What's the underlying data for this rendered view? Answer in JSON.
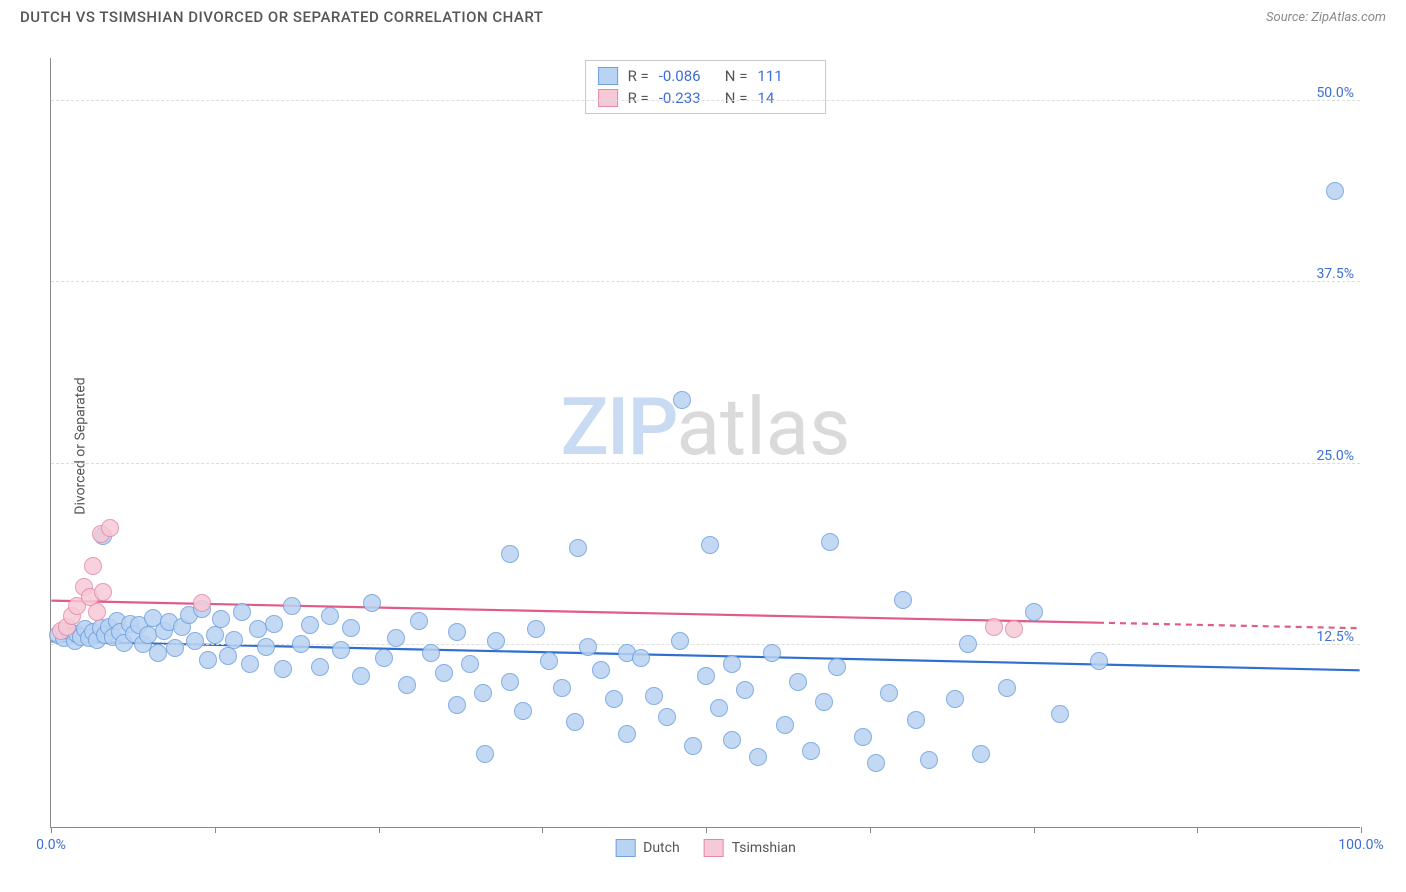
{
  "title": "DUTCH VS TSIMSHIAN DIVORCED OR SEPARATED CORRELATION CHART",
  "source": "Source: ZipAtlas.com",
  "ylabel": "Divorced or Separated",
  "watermark": {
    "bold": "ZIP",
    "light": "atlas"
  },
  "colors": {
    "series1_fill": "#b9d3f2",
    "series1_stroke": "#6fa0df",
    "series2_fill": "#f6c9d6",
    "series2_stroke": "#e48aa8",
    "trend1": "#2e6fd1",
    "trend2": "#e15b8a",
    "axis_text": "#3b6fd6",
    "grid": "#dddddd"
  },
  "chart": {
    "type": "scatter",
    "xlim": [
      0,
      100
    ],
    "ylim": [
      0,
      53
    ],
    "marker_radius": 9,
    "marker_opacity": 0.85,
    "line_width": 2.2,
    "x_ticks": [
      0,
      12.5,
      25,
      37.5,
      50,
      62.5,
      75,
      87.5,
      100
    ],
    "x_tick_labels": {
      "0": "0.0%",
      "100": "100.0%"
    },
    "y_ticks": [
      12.5,
      25.0,
      37.5,
      50.0
    ],
    "y_tick_labels": [
      "12.5%",
      "25.0%",
      "37.5%",
      "50.0%"
    ]
  },
  "legend_stats": [
    {
      "series": 1,
      "R_label": "R =",
      "R": "-0.086",
      "N_label": "N =",
      "N": "111"
    },
    {
      "series": 2,
      "R_label": "R =",
      "R": "-0.233",
      "N_label": "N =",
      "N": "14"
    }
  ],
  "bottom_legend": [
    {
      "label": "Dutch",
      "series": 1
    },
    {
      "label": "Tsimshian",
      "series": 2
    }
  ],
  "trend_lines": [
    {
      "series": 1,
      "x1": 0,
      "y1": 12.8,
      "x2": 100,
      "y2": 10.8,
      "dash_from_x": 100
    },
    {
      "series": 2,
      "x1": 0,
      "y1": 15.6,
      "x2": 100,
      "y2": 13.7,
      "dash_from_x": 80
    }
  ],
  "series1_points": [
    [
      0.5,
      13.2
    ],
    [
      1.0,
      13.0
    ],
    [
      1.4,
      13.5
    ],
    [
      1.8,
      12.8
    ],
    [
      2.0,
      13.3
    ],
    [
      2.3,
      13.1
    ],
    [
      2.6,
      13.6
    ],
    [
      2.9,
      13.0
    ],
    [
      3.2,
      13.4
    ],
    [
      3.5,
      12.9
    ],
    [
      3.8,
      13.7
    ],
    [
      4.1,
      13.2
    ],
    [
      4.4,
      13.8
    ],
    [
      4.7,
      13.1
    ],
    [
      5.0,
      14.2
    ],
    [
      5.3,
      13.4
    ],
    [
      5.6,
      12.7
    ],
    [
      6.0,
      14.0
    ],
    [
      6.3,
      13.3
    ],
    [
      6.7,
      13.9
    ],
    [
      7.0,
      12.6
    ],
    [
      7.4,
      13.2
    ],
    [
      7.8,
      14.4
    ],
    [
      8.2,
      12.0
    ],
    [
      8.6,
      13.5
    ],
    [
      9.0,
      14.1
    ],
    [
      9.5,
      12.3
    ],
    [
      10.0,
      13.8
    ],
    [
      10.5,
      14.6
    ],
    [
      11.0,
      12.8
    ],
    [
      11.5,
      15.0
    ],
    [
      12.0,
      11.5
    ],
    [
      12.5,
      13.2
    ],
    [
      13.0,
      14.3
    ],
    [
      13.5,
      11.8
    ],
    [
      14.0,
      12.9
    ],
    [
      14.6,
      14.8
    ],
    [
      15.2,
      11.2
    ],
    [
      15.8,
      13.6
    ],
    [
      16.4,
      12.4
    ],
    [
      17.0,
      14.0
    ],
    [
      17.7,
      10.9
    ],
    [
      18.4,
      15.2
    ],
    [
      19.1,
      12.6
    ],
    [
      19.8,
      13.9
    ],
    [
      20.5,
      11.0
    ],
    [
      21.3,
      14.5
    ],
    [
      22.1,
      12.2
    ],
    [
      22.9,
      13.7
    ],
    [
      23.7,
      10.4
    ],
    [
      24.5,
      15.4
    ],
    [
      25.4,
      11.6
    ],
    [
      26.3,
      13.0
    ],
    [
      27.2,
      9.8
    ],
    [
      28.1,
      14.2
    ],
    [
      29.0,
      12.0
    ],
    [
      30.0,
      10.6
    ],
    [
      31.0,
      8.4
    ],
    [
      31.0,
      13.4
    ],
    [
      32.0,
      11.2
    ],
    [
      33.0,
      9.2
    ],
    [
      33.1,
      5.0
    ],
    [
      34.0,
      12.8
    ],
    [
      35.0,
      10.0
    ],
    [
      35.0,
      18.8
    ],
    [
      36.0,
      8.0
    ],
    [
      37.0,
      13.6
    ],
    [
      38.0,
      11.4
    ],
    [
      39.0,
      9.6
    ],
    [
      40.0,
      7.2
    ],
    [
      40.2,
      19.2
    ],
    [
      41.0,
      12.4
    ],
    [
      42.0,
      10.8
    ],
    [
      43.0,
      8.8
    ],
    [
      44.0,
      6.4
    ],
    [
      44.0,
      12.0
    ],
    [
      45.0,
      11.6
    ],
    [
      46.0,
      9.0
    ],
    [
      47.0,
      7.6
    ],
    [
      48.0,
      12.8
    ],
    [
      48.2,
      29.4
    ],
    [
      49.0,
      5.6
    ],
    [
      50.0,
      10.4
    ],
    [
      50.3,
      19.4
    ],
    [
      51.0,
      8.2
    ],
    [
      52.0,
      11.2
    ],
    [
      52.0,
      6.0
    ],
    [
      53.0,
      9.4
    ],
    [
      54.0,
      4.8
    ],
    [
      55.0,
      12.0
    ],
    [
      56.0,
      7.0
    ],
    [
      57.0,
      10.0
    ],
    [
      58.0,
      5.2
    ],
    [
      59.0,
      8.6
    ],
    [
      59.5,
      19.6
    ],
    [
      60.0,
      11.0
    ],
    [
      62.0,
      6.2
    ],
    [
      63.0,
      4.4
    ],
    [
      64.0,
      9.2
    ],
    [
      65.0,
      15.6
    ],
    [
      66.0,
      7.4
    ],
    [
      67.0,
      4.6
    ],
    [
      69.0,
      8.8
    ],
    [
      70.0,
      12.6
    ],
    [
      71.0,
      5.0
    ],
    [
      73.0,
      9.6
    ],
    [
      75.0,
      14.8
    ],
    [
      77.0,
      7.8
    ],
    [
      80.0,
      11.4
    ],
    [
      98.0,
      43.8
    ],
    [
      4.0,
      20.0
    ]
  ],
  "series2_points": [
    [
      0.8,
      13.5
    ],
    [
      1.2,
      13.8
    ],
    [
      1.6,
      14.5
    ],
    [
      2.0,
      15.2
    ],
    [
      2.5,
      16.5
    ],
    [
      3.0,
      15.8
    ],
    [
      3.2,
      18.0
    ],
    [
      3.5,
      14.8
    ],
    [
      3.8,
      20.2
    ],
    [
      4.0,
      16.2
    ],
    [
      4.5,
      20.6
    ],
    [
      11.5,
      15.4
    ],
    [
      72.0,
      13.8
    ],
    [
      73.5,
      13.6
    ]
  ]
}
